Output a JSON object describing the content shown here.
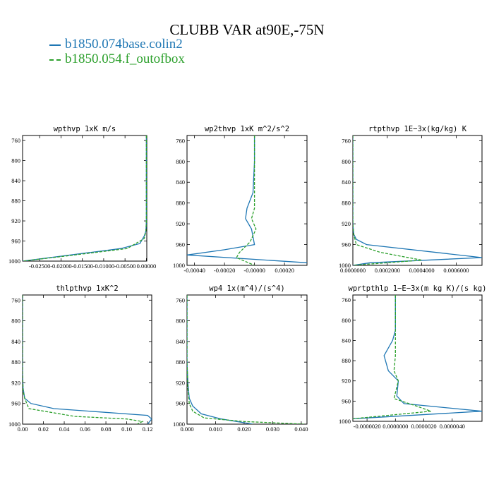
{
  "figure": {
    "title": "CLUBB VAR at90E,-75N",
    "legend": [
      {
        "label": "b1850.074base.colin2",
        "color": "#1f77b4",
        "dash": "solid"
      },
      {
        "label": "b1850.054.f_outofbox",
        "color": "#2ca02c",
        "dash": "dashed"
      }
    ]
  },
  "chart_data": [
    {
      "type": "line",
      "title": "wpthvp  1xK m/s",
      "xlim": [
        -0.029,
        0.0001
      ],
      "ylim": [
        1000,
        750
      ],
      "xticks": [
        -0.025,
        -0.02,
        -0.015,
        -0.01,
        -0.005,
        0.0
      ],
      "xtick_labels": [
        "-0.02500",
        "-0.02000",
        "-0.01500",
        "-0.01000",
        "-0.00500",
        "0.00000"
      ],
      "yticks": [
        760,
        800,
        840,
        880,
        920,
        960,
        1000
      ],
      "series": [
        {
          "name": "b1850.074base.colin2",
          "x": [
            0,
            0,
            0,
            0,
            -0.0001,
            -0.0005,
            -0.0015,
            -0.006,
            -0.029
          ],
          "y": [
            750,
            800,
            880,
            920,
            940,
            950,
            965,
            975,
            1000
          ]
        },
        {
          "name": "b1850.054.f_outofbox",
          "x": [
            0,
            0,
            0,
            0,
            -0.0001,
            -0.0005,
            -0.0045,
            -0.019,
            -0.029
          ],
          "y": [
            750,
            800,
            880,
            920,
            940,
            955,
            975,
            990,
            1000
          ]
        }
      ]
    },
    {
      "type": "line",
      "title": "wp2thvp  1xK m^2/s^2",
      "xlim": [
        -0.00045,
        0.00035
      ],
      "ylim": [
        1000,
        750
      ],
      "xticks": [
        -0.0004,
        -0.0002,
        0.0,
        0.0002
      ],
      "xtick_labels": [
        "-0.00040",
        "-0.00020",
        "-0.00000",
        "0.00020"
      ],
      "yticks": [
        760,
        800,
        840,
        880,
        920,
        960,
        1000
      ],
      "series": [
        {
          "name": "b1850.074base.colin2",
          "x": [
            0,
            0,
            -1e-05,
            -5e-05,
            -6e-05,
            -2e-05,
            0,
            -0.0002,
            -0.00045,
            0.00035
          ],
          "y": [
            750,
            800,
            860,
            890,
            910,
            930,
            960,
            970,
            980,
            995
          ]
        },
        {
          "name": "b1850.054.f_outofbox",
          "x": [
            0,
            0,
            0,
            0,
            -2e-05,
            1e-05,
            -3e-05,
            -0.0001,
            -0.00012,
            0.0
          ],
          "y": [
            750,
            800,
            860,
            890,
            910,
            930,
            955,
            975,
            985,
            1000
          ]
        }
      ]
    },
    {
      "type": "line",
      "title": "rtpthvp  1E−3x(kg/kg) K",
      "xlim": [
        0,
        0.00075
      ],
      "ylim": [
        1000,
        750
      ],
      "xticks": [
        0.0,
        0.0002,
        0.0004,
        0.0006
      ],
      "xtick_labels": [
        "0.0000000",
        "0.0002000",
        "0.0004000",
        "0.0006000"
      ],
      "yticks": [
        760,
        800,
        840,
        880,
        920,
        960,
        1000
      ],
      "series": [
        {
          "name": "b1850.074base.colin2",
          "x": [
            0,
            0,
            0,
            5e-06,
            2e-05,
            8e-05,
            0.00075,
            0.0001,
            0.0
          ],
          "y": [
            750,
            880,
            920,
            940,
            950,
            960,
            985,
            995,
            1000
          ]
        },
        {
          "name": "b1850.054.f_outofbox",
          "x": [
            0,
            0,
            0,
            5e-06,
            2e-05,
            0.00016,
            0.0004,
            0.0002,
            0.0
          ],
          "y": [
            750,
            880,
            920,
            940,
            960,
            975,
            990,
            995,
            1000
          ]
        }
      ]
    },
    {
      "type": "line",
      "title": "thlpthvp  1xK^2",
      "xlim": [
        0,
        0.124
      ],
      "ylim": [
        1000,
        750
      ],
      "xticks": [
        0.0,
        0.02,
        0.04,
        0.06,
        0.08,
        0.1,
        0.12
      ],
      "xtick_labels": [
        "0.00",
        "0.02",
        "0.04",
        "0.06",
        "0.08",
        "0.10",
        "0.12"
      ],
      "yticks": [
        760,
        800,
        840,
        880,
        920,
        960,
        1000
      ],
      "series": [
        {
          "name": "b1850.074base.colin2",
          "x": [
            0,
            0,
            0.0005,
            0.002,
            0.008,
            0.03,
            0.12,
            0.124,
            0.12
          ],
          "y": [
            750,
            900,
            930,
            950,
            960,
            970,
            983,
            990,
            1000
          ]
        },
        {
          "name": "b1850.054.f_outofbox",
          "x": [
            0,
            0,
            0.0005,
            0.002,
            0.006,
            0.05,
            0.1,
            0.115,
            0.11
          ],
          "y": [
            750,
            900,
            935,
            950,
            970,
            985,
            990,
            995,
            1000
          ]
        }
      ]
    },
    {
      "type": "line",
      "title": "wp4  1x(m^4)/(s^4)",
      "xlim": [
        0,
        0.042
      ],
      "ylim": [
        1000,
        750
      ],
      "xticks": [
        0.0,
        0.01,
        0.02,
        0.03,
        0.04
      ],
      "xtick_labels": [
        "0.000",
        "0.010",
        "0.020",
        "0.030",
        "0.040"
      ],
      "yticks": [
        760,
        800,
        840,
        880,
        920,
        960,
        1000
      ],
      "series": [
        {
          "name": "b1850.074base.colin2",
          "x": [
            0,
            0,
            0.0003,
            0.0008,
            0.002,
            0.005,
            0.012,
            0.023
          ],
          "y": [
            750,
            880,
            920,
            950,
            965,
            980,
            990,
            1000
          ]
        },
        {
          "name": "b1850.054.f_outofbox",
          "x": [
            0,
            0,
            0.0003,
            0.0008,
            0.002,
            0.006,
            0.02,
            0.041
          ],
          "y": [
            750,
            880,
            930,
            960,
            975,
            988,
            995,
            1000
          ]
        }
      ]
    },
    {
      "type": "line",
      "title": "wprtpthlp  1−E−3x(m kg K)/(s kg)",
      "xlim": [
        -3e-06,
        6.1e-06
      ],
      "ylim": [
        1000,
        750
      ],
      "xticks": [
        -2e-06,
        0.0,
        2e-06,
        4e-06
      ],
      "xtick_labels": [
        "-0.0000020",
        "0.0000000",
        "0.0000020",
        "0.0000040"
      ],
      "yticks": [
        760,
        800,
        840,
        880,
        920,
        960,
        1000
      ],
      "series": [
        {
          "name": "b1850.074base.colin2",
          "x": [
            0,
            0,
            -2e-07,
            -8e-07,
            -5e-07,
            2e-07,
            1e-07,
            6e-07,
            6.1e-06,
            -3e-06
          ],
          "y": [
            750,
            820,
            840,
            870,
            900,
            920,
            950,
            965,
            980,
            995
          ]
        },
        {
          "name": "b1850.054.f_outofbox",
          "x": [
            0,
            0,
            0,
            0,
            -1e-07,
            2e-07,
            -1e-07,
            1.5e-06,
            2.5e-06,
            -3e-06
          ],
          "y": [
            750,
            820,
            840,
            870,
            900,
            920,
            955,
            970,
            980,
            995
          ]
        }
      ]
    }
  ]
}
